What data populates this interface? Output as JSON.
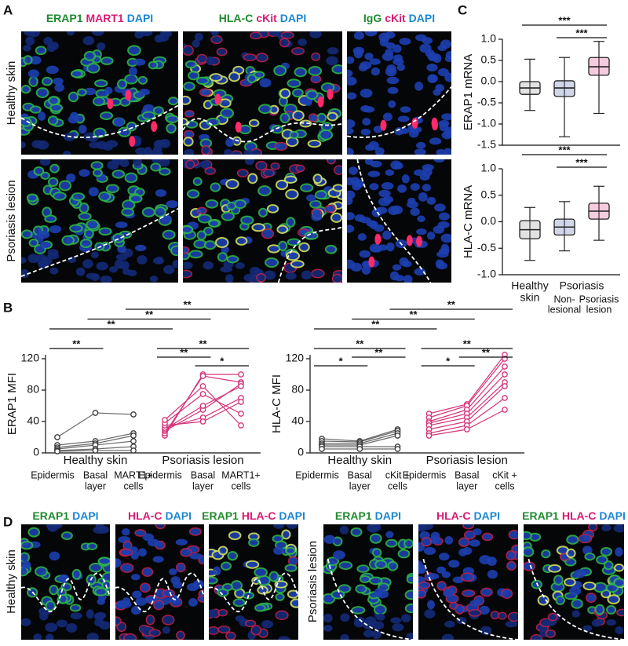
{
  "panel_labels": [
    "A",
    "B",
    "C",
    "D"
  ],
  "panel_a": {
    "columns": [
      [
        {
          "text": "ERAP1",
          "color": "#1f8a2e"
        },
        {
          "text": "MART1",
          "color": "#d81b73"
        },
        {
          "text": "DAPI",
          "color": "#1b87d4"
        }
      ],
      [
        {
          "text": "HLA-C",
          "color": "#1f8a2e"
        },
        {
          "text": "cKit",
          "color": "#d81b73"
        },
        {
          "text": "DAPI",
          "color": "#1b87d4"
        }
      ],
      [
        {
          "text": "IgG",
          "color": "#1f8a2e"
        },
        {
          "text": "cKit",
          "color": "#d81b73"
        },
        {
          "text": "DAPI",
          "color": "#1b87d4"
        }
      ]
    ],
    "rows": [
      "Healthy skin",
      "Psoriasis lesion"
    ]
  },
  "panel_d": {
    "headers": [
      [
        {
          "text": "ERAP1",
          "color": "#1f8a2e"
        },
        {
          "text": "DAPI",
          "color": "#1b87d4"
        }
      ],
      [
        {
          "text": "HLA-C",
          "color": "#d81b73"
        },
        {
          "text": "DAPI",
          "color": "#1b87d4"
        }
      ],
      [
        {
          "text": "ERAP1",
          "color": "#1f8a2e"
        },
        {
          "text": "HLA-C",
          "color": "#d81b73"
        },
        {
          "text": "DAPI",
          "color": "#1b87d4"
        }
      ]
    ],
    "rows": [
      "Healthy skin",
      "Psoriasis lesion"
    ]
  },
  "chart_data": [
    {
      "type": "paired-line",
      "ylabel": "ERAP1 MFI",
      "ylim": [
        0,
        125
      ],
      "yticks": [
        0,
        40,
        80,
        120
      ],
      "categories": [
        [
          "Epidermis"
        ],
        [
          "Basal",
          "layer"
        ],
        [
          "MART1+",
          "cells"
        ]
      ],
      "groups": [
        {
          "name": "Healthy skin",
          "color": "#3a3a3a",
          "subjects": [
            [
              20,
              51,
              49
            ],
            [
              10,
              15,
              25
            ],
            [
              7,
              12,
              22
            ],
            [
              5,
              10,
              15
            ],
            [
              3,
              5,
              8
            ],
            [
              2,
              3,
              3
            ]
          ]
        },
        {
          "name": "Psoriasis lesion",
          "color": "#d6337a",
          "subjects": [
            [
              22,
              100,
              100
            ],
            [
              25,
              98,
              90
            ],
            [
              28,
              55,
              88
            ],
            [
              30,
              60,
              85
            ],
            [
              32,
              45,
              70
            ],
            [
              35,
              40,
              65
            ],
            [
              38,
              75,
              50
            ],
            [
              42,
              85,
              35
            ]
          ]
        }
      ],
      "brackets": [
        {
          "from": 2,
          "to": 5,
          "label": "**"
        },
        {
          "from": 1,
          "to": 4,
          "label": "**"
        },
        {
          "from": 0,
          "to": 3,
          "label": "**"
        },
        {
          "from": 0,
          "to": 1,
          "label": "**"
        },
        {
          "from": 3,
          "to": 5,
          "label": "**"
        },
        {
          "from": 3,
          "to": 4,
          "label": "**"
        },
        {
          "from": 4,
          "to": 5,
          "label": "*"
        }
      ]
    },
    {
      "type": "paired-line",
      "ylabel": "HLA-C MFI",
      "ylim": [
        0,
        125
      ],
      "yticks": [
        0,
        40,
        80,
        120
      ],
      "categories": [
        [
          "Epidermis"
        ],
        [
          "Basal",
          "layer"
        ],
        [
          "cKit +",
          "cells"
        ]
      ],
      "groups": [
        {
          "name": "Healthy skin",
          "color": "#3a3a3a",
          "subjects": [
            [
              18,
              15,
              30
            ],
            [
              15,
              14,
              28
            ],
            [
              12,
              12,
              25
            ],
            [
              10,
              10,
              22
            ],
            [
              8,
              8,
              8
            ],
            [
              5,
              5,
              5
            ]
          ]
        },
        {
          "name": "Psoriasis lesion",
          "color": "#d6337a",
          "subjects": [
            [
              50,
              62,
              125
            ],
            [
              45,
              60,
              120
            ],
            [
              40,
              55,
              110
            ],
            [
              38,
              50,
              100
            ],
            [
              35,
              45,
              90
            ],
            [
              30,
              40,
              85
            ],
            [
              25,
              35,
              70
            ],
            [
              22,
              30,
              55
            ]
          ]
        }
      ],
      "brackets": [
        {
          "from": 2,
          "to": 5,
          "label": "**"
        },
        {
          "from": 1,
          "to": 4,
          "label": "**"
        },
        {
          "from": 0,
          "to": 3,
          "label": "**"
        },
        {
          "from": 0,
          "to": 2,
          "label": "**"
        },
        {
          "from": 1,
          "to": 2,
          "label": "**"
        },
        {
          "from": 0,
          "to": 1,
          "label": "*"
        },
        {
          "from": 3,
          "to": 5,
          "label": "**"
        },
        {
          "from": 4,
          "to": 5,
          "label": "**"
        },
        {
          "from": 3,
          "to": 4,
          "label": "*"
        }
      ]
    },
    {
      "type": "box",
      "ylabel": "ERAP1 mRNA",
      "ylim": [
        -1.5,
        1.0
      ],
      "yticks": [
        {
          "value": -1.5,
          "label": "-1.5"
        },
        {
          "value": -1.0,
          "label": "-1.0"
        },
        {
          "value": -0.5,
          "label": "-0.5"
        },
        {
          "value": 0.0,
          "label": "0.0"
        },
        {
          "value": 0.5,
          "label": "0.5"
        },
        {
          "value": 1.0,
          "label": "1.0"
        }
      ],
      "boxes": [
        {
          "min": -0.68,
          "q1": -0.3,
          "median": -0.15,
          "q3": 0.0,
          "max": 0.53,
          "color": "#8c8c8c"
        },
        {
          "min": -1.3,
          "q1": -0.35,
          "median": -0.15,
          "q3": 0.02,
          "max": 0.57,
          "color": "#4a5aa8"
        },
        {
          "min": -0.75,
          "q1": 0.15,
          "median": 0.35,
          "q3": 0.57,
          "max": 0.95,
          "color": "#d6337a"
        }
      ],
      "brackets": [
        {
          "from": 0,
          "to": 2,
          "label": "***"
        },
        {
          "from": 1,
          "to": 2,
          "label": "***"
        }
      ]
    },
    {
      "type": "box",
      "ylabel": "HLA-C mRNA",
      "ylim": [
        -1.0,
        1.0
      ],
      "yticks": [
        {
          "value": -1.0,
          "label": "-1.0"
        },
        {
          "value": -0.5,
          "label": "-0.5"
        },
        {
          "value": 0.0,
          "label": "0.0"
        },
        {
          "value": 0.5,
          "label": "0.5"
        },
        {
          "value": 1.0,
          "label": "1.0"
        }
      ],
      "categories": [
        [
          "Healthy",
          "skin"
        ],
        [
          "Non-",
          "lesional"
        ],
        [
          "Psoriasis",
          "lesion"
        ]
      ],
      "group_label": "Psoriasis",
      "boxes": [
        {
          "min": -0.73,
          "q1": -0.32,
          "median": -0.15,
          "q3": 0.02,
          "max": 0.27,
          "color": "#8c8c8c"
        },
        {
          "min": -0.55,
          "q1": -0.25,
          "median": -0.1,
          "q3": 0.05,
          "max": 0.38,
          "color": "#4a5aa8"
        },
        {
          "min": -0.35,
          "q1": 0.05,
          "median": 0.2,
          "q3": 0.35,
          "max": 0.67,
          "color": "#d6337a"
        }
      ],
      "brackets": [
        {
          "from": 0,
          "to": 2,
          "label": "***"
        },
        {
          "from": 1,
          "to": 2,
          "label": "***"
        }
      ]
    }
  ]
}
